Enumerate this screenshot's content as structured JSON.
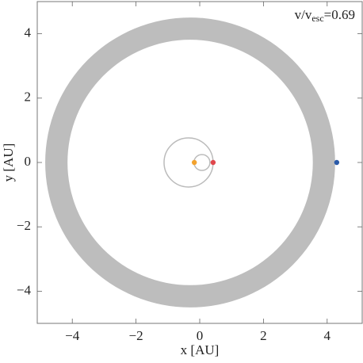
{
  "chart_data": {
    "type": "scatter",
    "x_label": "x [AU]",
    "y_label": "y [AU]",
    "annotation": [
      "v/v",
      "esc",
      "=0.69"
    ],
    "xlim": [
      -5.1,
      5.1
    ],
    "ylim": [
      -5,
      5
    ],
    "xticks": [
      {
        "value": -4,
        "label": "−4"
      },
      {
        "value": -2,
        "label": "−2"
      },
      0,
      2,
      4
    ],
    "yticks": [
      {
        "value": -4,
        "label": "−4"
      },
      {
        "value": -2,
        "label": "−2"
      },
      0,
      2,
      4
    ],
    "annulus": {
      "x": -0.3,
      "y": 0,
      "inner_radius": 3.85,
      "outer_radius": 4.55,
      "color": "#bdbdbd"
    },
    "orbits": [
      {
        "x": -0.35,
        "y": 0,
        "radius": 0.77,
        "color": "#bbbbbb"
      },
      {
        "x": 0.07,
        "y": 0,
        "radius": 0.25,
        "color": "#bbbbbb"
      }
    ],
    "points": [
      {
        "x": -0.17,
        "y": 0,
        "color": "#f2a22e"
      },
      {
        "x": 0.42,
        "y": 0,
        "color": "#e0474c"
      },
      {
        "x": 4.3,
        "y": 0,
        "color": "#2a5aa8"
      }
    ]
  }
}
